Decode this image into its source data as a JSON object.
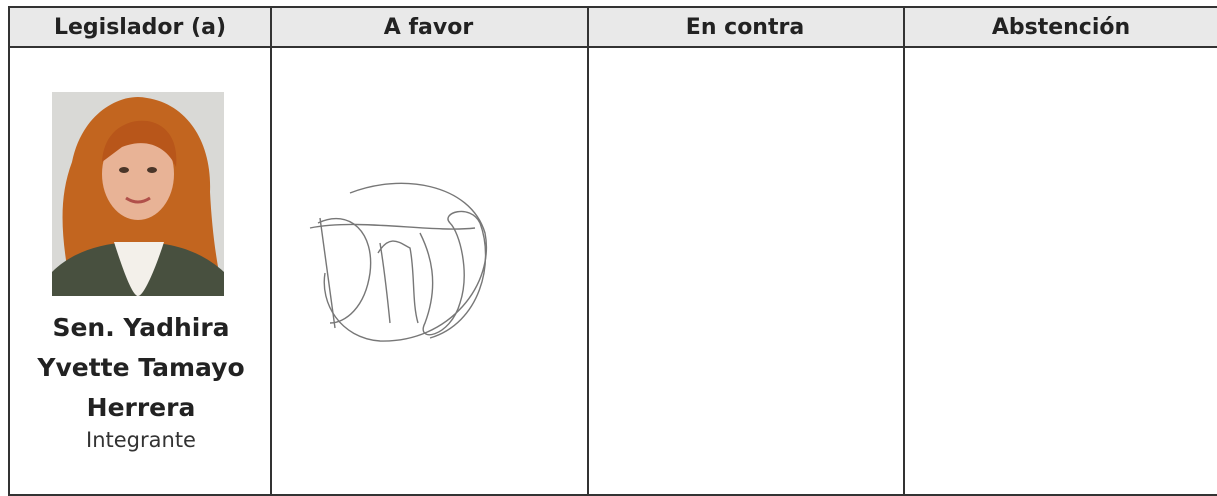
{
  "table": {
    "headers": [
      "Legislador (a)",
      "A favor",
      "En contra",
      "Abstención"
    ],
    "rows": [
      {
        "name": "Sen. Yadhira Yvette Tamayo Herrera",
        "role": "Integrante"
      }
    ]
  }
}
